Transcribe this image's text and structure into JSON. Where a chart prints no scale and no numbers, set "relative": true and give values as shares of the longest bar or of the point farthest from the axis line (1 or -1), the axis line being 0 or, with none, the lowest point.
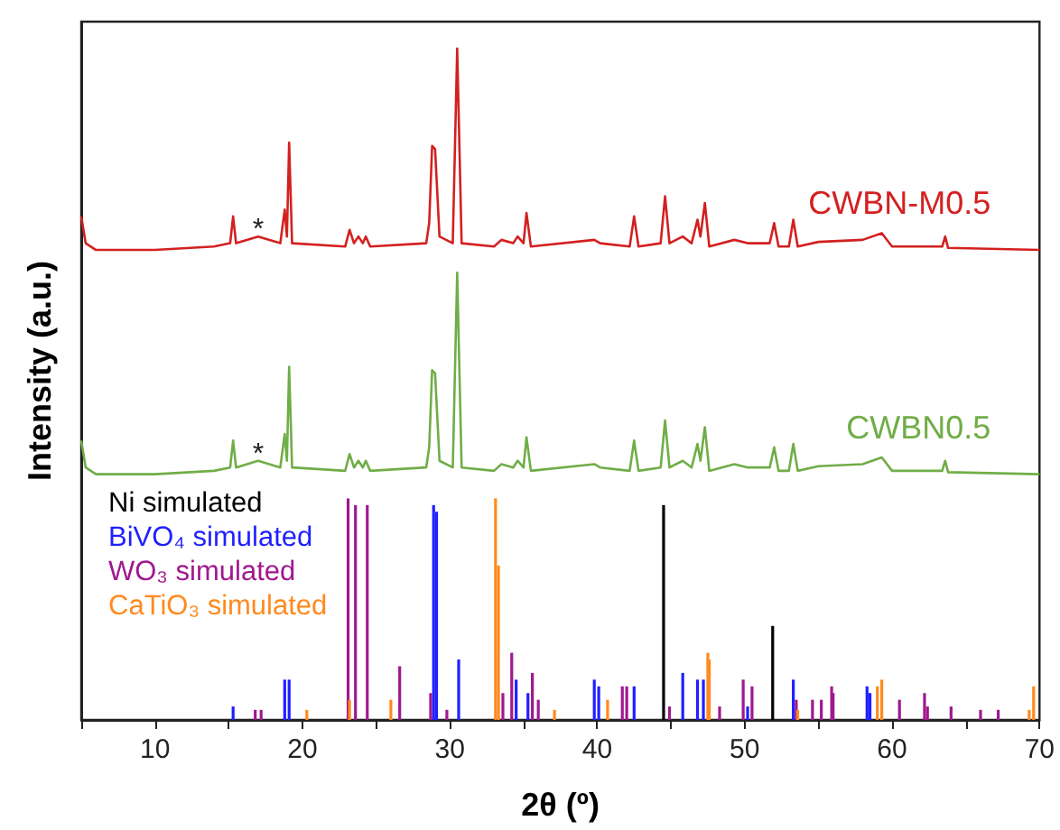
{
  "chart_data": {
    "type": "line",
    "relative": true,
    "xlabel": "2θ (º)",
    "ylabel": "Intensity (a.u.)",
    "xlim": [
      5,
      70
    ],
    "xticks": [
      {
        "value": 5,
        "label": null
      },
      10,
      {
        "value": 15,
        "label": null
      },
      20,
      {
        "value": 25,
        "label": null
      },
      30,
      {
        "value": 35,
        "label": null
      },
      40,
      {
        "value": 45,
        "label": null
      },
      50,
      {
        "value": 55,
        "label": null
      },
      60,
      {
        "value": 65,
        "label": null
      },
      70
    ],
    "x": [
      5,
      5.3,
      6,
      10,
      14,
      15.1,
      15.3,
      15.5,
      17,
      18.5,
      18.8,
      18.95,
      19.1,
      19.3,
      22.9,
      23.2,
      23.5,
      23.8,
      24.1,
      24.3,
      24.6,
      28.4,
      28.6,
      28.8,
      29.0,
      29.3,
      30.2,
      30.5,
      30.8,
      33,
      33.5,
      34.3,
      34.6,
      35.0,
      35.2,
      35.5,
      39.8,
      40.2,
      42.2,
      42.5,
      42.8,
      44.3,
      44.6,
      44.9,
      45.8,
      46.4,
      46.8,
      47.0,
      47.3,
      47.6,
      49.3,
      50.2,
      51.7,
      52.0,
      52.3,
      53.0,
      53.3,
      53.6,
      55,
      58,
      59.3,
      60,
      63.4,
      63.6,
      63.8,
      70
    ],
    "series": [
      {
        "name": "CWBN-M0.5",
        "color": "#d42020",
        "values": [
          0.75,
          0.71,
          0.7,
          0.7,
          0.705,
          0.71,
          0.75,
          0.71,
          0.72,
          0.71,
          0.76,
          0.72,
          0.86,
          0.71,
          0.705,
          0.73,
          0.71,
          0.72,
          0.71,
          0.72,
          0.705,
          0.71,
          0.74,
          0.855,
          0.85,
          0.72,
          0.71,
          1.0,
          0.71,
          0.705,
          0.715,
          0.71,
          0.72,
          0.71,
          0.755,
          0.705,
          0.715,
          0.71,
          0.705,
          0.75,
          0.705,
          0.71,
          0.78,
          0.71,
          0.72,
          0.71,
          0.745,
          0.72,
          0.77,
          0.705,
          0.715,
          0.71,
          0.71,
          0.74,
          0.705,
          0.705,
          0.745,
          0.705,
          0.712,
          0.715,
          0.725,
          0.705,
          0.705,
          0.72,
          0.703,
          0.7
        ]
      },
      {
        "name": "CWBN0.5",
        "color": "#70ad47",
        "values": [
          0.416,
          0.376,
          0.366,
          0.366,
          0.371,
          0.376,
          0.416,
          0.376,
          0.386,
          0.376,
          0.426,
          0.386,
          0.526,
          0.376,
          0.371,
          0.396,
          0.376,
          0.386,
          0.376,
          0.386,
          0.371,
          0.376,
          0.406,
          0.521,
          0.516,
          0.386,
          0.376,
          0.666,
          0.376,
          0.371,
          0.381,
          0.376,
          0.386,
          0.376,
          0.421,
          0.371,
          0.381,
          0.376,
          0.371,
          0.416,
          0.371,
          0.376,
          0.446,
          0.376,
          0.386,
          0.376,
          0.411,
          0.386,
          0.436,
          0.371,
          0.381,
          0.376,
          0.376,
          0.406,
          0.371,
          0.371,
          0.411,
          0.371,
          0.378,
          0.381,
          0.391,
          0.371,
          0.371,
          0.386,
          0.369,
          0.366
        ]
      },
      {
        "name": "Ni simulated",
        "type": "bar",
        "color": "#000000",
        "x": [
          44.5,
          51.9
        ],
        "values": [
          0.32,
          0.14
        ]
      },
      {
        "name": "BiVO₄ simulated",
        "type": "bar",
        "color": "#1f1fff",
        "x": [
          15.3,
          18.8,
          19.1,
          28.9,
          29.1,
          30.6,
          34.5,
          35.3,
          39.8,
          40.1,
          42.5,
          45.8,
          46.8,
          47.2,
          50.2,
          53.3,
          58.3,
          58.5
        ],
        "values": [
          0.02,
          0.06,
          0.06,
          0.32,
          0.31,
          0.09,
          0.06,
          0.04,
          0.06,
          0.05,
          0.05,
          0.07,
          0.06,
          0.06,
          0.02,
          0.06,
          0.05,
          0.04
        ]
      },
      {
        "name": "WO₃ simulated",
        "type": "bar",
        "color": "#a0188f",
        "x": [
          16.8,
          17.2,
          23.1,
          23.6,
          24.4,
          26.6,
          28.7,
          29.8,
          33.6,
          34.2,
          35.6,
          36.0,
          41.7,
          42.0,
          44.9,
          48.3,
          49.9,
          50.5,
          53.5,
          54.6,
          55.2,
          55.9,
          56.0,
          60.5,
          62.2,
          62.4,
          64.0,
          66.0,
          67.2
        ],
        "values": [
          0.015,
          0.015,
          0.33,
          0.32,
          0.32,
          0.08,
          0.04,
          0.015,
          0.04,
          0.1,
          0.07,
          0.03,
          0.05,
          0.05,
          0.02,
          0.02,
          0.06,
          0.05,
          0.03,
          0.03,
          0.03,
          0.05,
          0.04,
          0.03,
          0.04,
          0.02,
          0.02,
          0.015,
          0.015
        ]
      },
      {
        "name": "CaTiO₃ simulated",
        "type": "bar",
        "color": "#ff8a1f",
        "x": [
          20.3,
          23.2,
          26.0,
          33.1,
          33.3,
          37.1,
          40.7,
          47.5,
          47.6,
          53.6,
          59.0,
          59.3,
          69.3,
          69.6
        ],
        "values": [
          0.015,
          0.03,
          0.03,
          0.33,
          0.23,
          0.015,
          0.03,
          0.1,
          0.09,
          0.015,
          0.05,
          0.06,
          0.015,
          0.05
        ]
      }
    ],
    "annotations": [
      {
        "text": "*",
        "x": 17,
        "y": 0.73
      },
      {
        "text": "*",
        "x": 17,
        "y": 0.395
      }
    ],
    "legend": "left",
    "marker": "none",
    "line_style": "solid"
  }
}
